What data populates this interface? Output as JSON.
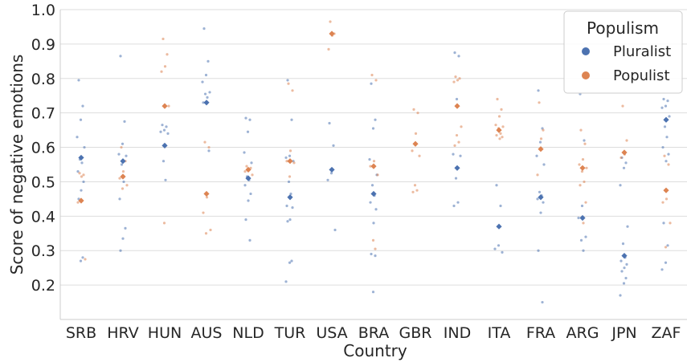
{
  "chart_data": {
    "type": "scatter",
    "xlabel": "Country",
    "ylabel": "Score of negative emotions",
    "ylim": [
      0.1,
      1.0
    ],
    "yticks": [
      "0.2",
      "0.3",
      "0.4",
      "0.5",
      "0.6",
      "0.7",
      "0.8",
      "0.9",
      "1.0"
    ],
    "categories": [
      "SRB",
      "HRV",
      "HUN",
      "AUS",
      "NLD",
      "TUR",
      "USA",
      "BRA",
      "GBR",
      "IND",
      "ITA",
      "FRA",
      "ARG",
      "JPN",
      "ZAF"
    ],
    "grid": "horizontal",
    "legend": {
      "title": "Populism",
      "placement": "top-right",
      "entries": [
        "Pluralist",
        "Populist"
      ]
    },
    "series": [
      {
        "name": "Pluralist",
        "color": "#4c72b0",
        "means": [
          0.57,
          0.56,
          0.605,
          0.73,
          0.51,
          0.455,
          0.535,
          0.465,
          null,
          0.54,
          0.37,
          0.455,
          0.395,
          0.285,
          0.68
        ],
        "points": [
          [
            0.795,
            0.72,
            0.68,
            0.63,
            0.6,
            0.565,
            0.555,
            0.53,
            0.5,
            0.475,
            0.45,
            0.28,
            0.27
          ],
          [
            0.865,
            0.675,
            0.61,
            0.58,
            0.575,
            0.55,
            0.5,
            0.45,
            0.365,
            0.335,
            0.3
          ],
          [
            0.665,
            0.66,
            0.65,
            0.645,
            0.64,
            0.56,
            0.505
          ],
          [
            0.945,
            0.85,
            0.81,
            0.79,
            0.76,
            0.755,
            0.745,
            0.73,
            0.59
          ],
          [
            0.685,
            0.68,
            0.645,
            0.585,
            0.555,
            0.515,
            0.505,
            0.49,
            0.465,
            0.445,
            0.39,
            0.33
          ],
          [
            0.795,
            0.68,
            0.575,
            0.57,
            0.56,
            0.5,
            0.465,
            0.43,
            0.425,
            0.39,
            0.385,
            0.27,
            0.265,
            0.21
          ],
          [
            0.67,
            0.605,
            0.525,
            0.505,
            0.36
          ],
          [
            0.785,
            0.68,
            0.655,
            0.565,
            0.52,
            0.49,
            0.46,
            0.44,
            0.42,
            0.38,
            0.29,
            0.285,
            0.18
          ],
          [],
          [
            0.875,
            0.865,
            0.74,
            0.58,
            0.575,
            0.51,
            0.44,
            0.43
          ],
          [
            0.49,
            0.43,
            0.315,
            0.305,
            0.295
          ],
          [
            0.765,
            0.655,
            0.615,
            0.575,
            0.55,
            0.47,
            0.46,
            0.45,
            0.44,
            0.41,
            0.3,
            0.15
          ],
          [
            0.755,
            0.62,
            0.43,
            0.395,
            0.34,
            0.33,
            0.3
          ],
          [
            0.57,
            0.555,
            0.54,
            0.49,
            0.37,
            0.32,
            0.28,
            0.27,
            0.26,
            0.25,
            0.24,
            0.22,
            0.205,
            0.17
          ],
          [
            0.74,
            0.735,
            0.72,
            0.715,
            0.69,
            0.66,
            0.63,
            0.6,
            0.58,
            0.56,
            0.38,
            0.315,
            0.265,
            0.245
          ]
        ]
      },
      {
        "name": "Populist",
        "color": "#dd8452",
        "means": [
          0.445,
          0.515,
          0.72,
          0.465,
          0.535,
          0.56,
          0.93,
          0.545,
          0.61,
          0.72,
          0.65,
          0.595,
          0.54,
          0.585,
          0.475
        ],
        "points": [
          [
            0.525,
            0.52,
            0.515,
            0.44,
            0.275
          ],
          [
            0.6,
            0.56,
            0.53,
            0.51,
            0.49,
            0.48
          ],
          [
            0.915,
            0.87,
            0.835,
            0.82,
            0.72,
            0.38
          ],
          [
            0.615,
            0.6,
            0.455,
            0.41,
            0.36,
            0.35
          ],
          [
            0.545,
            0.54,
            0.535,
            0.53,
            0.52,
            0.51
          ],
          [
            0.785,
            0.765,
            0.59,
            0.56,
            0.555,
            0.515
          ],
          [
            0.965,
            0.93,
            0.925,
            0.885
          ],
          [
            0.81,
            0.795,
            0.56,
            0.545,
            0.52,
            0.33,
            0.305
          ],
          [
            0.71,
            0.7,
            0.64,
            0.59,
            0.575,
            0.49,
            0.475,
            0.47
          ],
          [
            0.805,
            0.8,
            0.795,
            0.79,
            0.66,
            0.635,
            0.615,
            0.605
          ],
          [
            0.74,
            0.71,
            0.69,
            0.665,
            0.66,
            0.655,
            0.64,
            0.635,
            0.63,
            0.625
          ],
          [
            0.73,
            0.65,
            0.625,
            0.52
          ],
          [
            0.65,
            0.61,
            0.565,
            0.55,
            0.54,
            0.53,
            0.5,
            0.49,
            0.44,
            0.38
          ],
          [
            0.72,
            0.62,
            0.58,
            0.57
          ],
          [
            0.575,
            0.55,
            0.45,
            0.44,
            0.38,
            0.31
          ]
        ]
      }
    ]
  }
}
